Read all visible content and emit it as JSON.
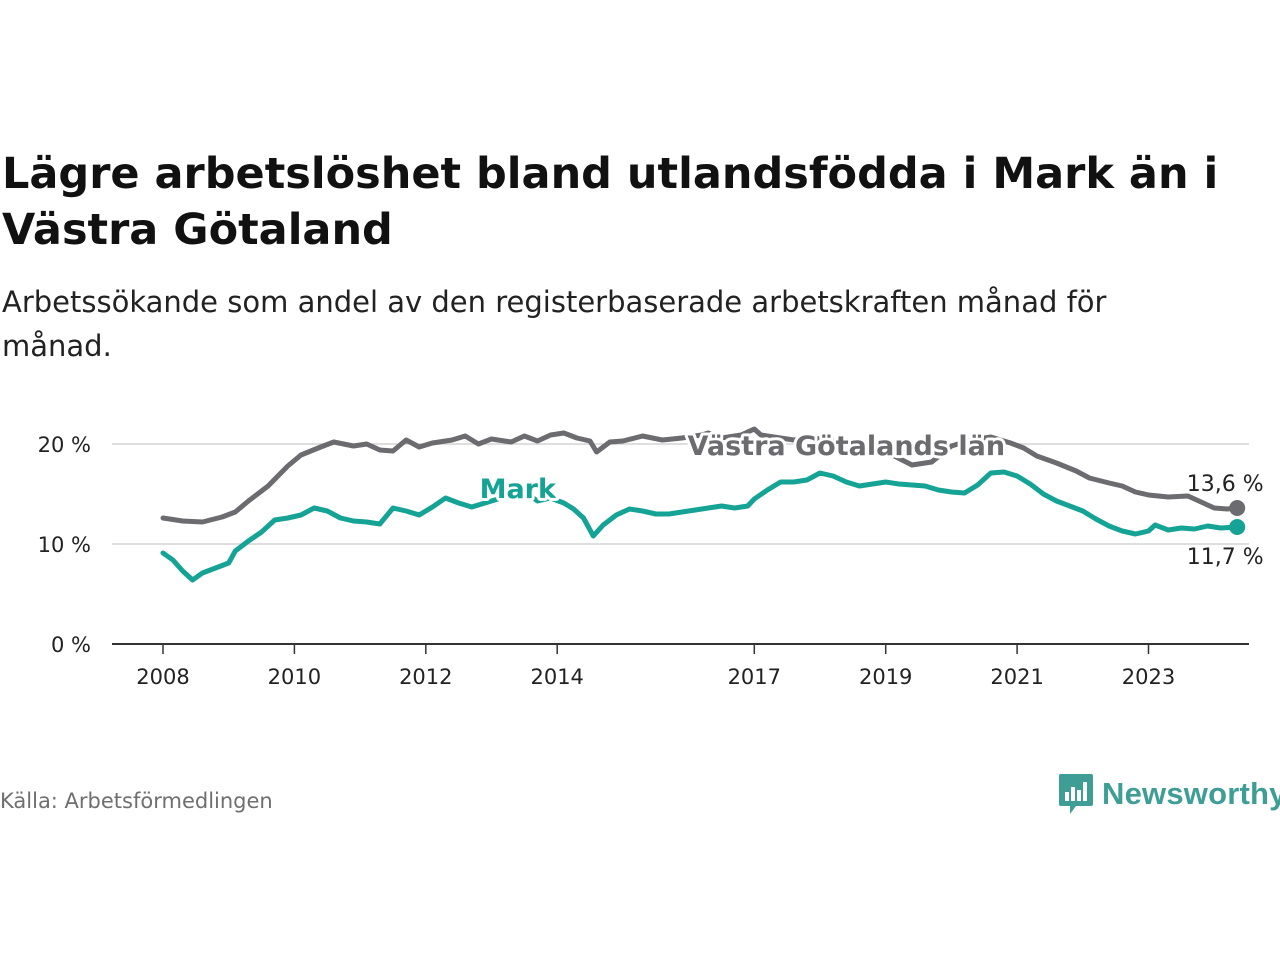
{
  "title": "Lägre arbetslöshet bland utlandsfödda i Mark än i Västra Götaland",
  "subtitle": "Arbetssökande som andel av den registerbaserade arbetskraften månad för månad.",
  "source": "Källa: Arbetsförmedlingen",
  "brand": {
    "name": "Newsworthy",
    "color": "#3e9e95"
  },
  "chart_data": {
    "type": "line",
    "title": "Lägre arbetslöshet bland utlandsfödda i Mark än i Västra Götaland",
    "xlabel": "",
    "ylabel": "",
    "ylim": [
      0,
      20
    ],
    "xlim": [
      2008,
      2024.85
    ],
    "grid": true,
    "y_ticks": [
      {
        "value": 0,
        "label": "0 %"
      },
      {
        "value": 10,
        "label": "10 %"
      },
      {
        "value": 20,
        "label": "20 %"
      }
    ],
    "x_ticks": [
      {
        "value": 2008,
        "label": "2008"
      },
      {
        "value": 2010,
        "label": "2010"
      },
      {
        "value": 2012,
        "label": "2012"
      },
      {
        "value": 2014,
        "label": "2014"
      },
      {
        "value": 2017,
        "label": "2017"
      },
      {
        "value": 2019,
        "label": "2019"
      },
      {
        "value": 2021,
        "label": "2021"
      },
      {
        "value": 2023,
        "label": "2023"
      }
    ],
    "series": [
      {
        "name": "Västra Götalands län",
        "color": "#6b6b70",
        "end_label": "13,6 %",
        "points": [
          [
            2008.0,
            12.6
          ],
          [
            2008.3,
            12.3
          ],
          [
            2008.6,
            12.2
          ],
          [
            2008.9,
            12.7
          ],
          [
            2009.1,
            13.2
          ],
          [
            2009.3,
            14.3
          ],
          [
            2009.6,
            15.8
          ],
          [
            2009.9,
            17.8
          ],
          [
            2010.1,
            18.9
          ],
          [
            2010.4,
            19.7
          ],
          [
            2010.6,
            20.2
          ],
          [
            2010.9,
            19.8
          ],
          [
            2011.1,
            20.0
          ],
          [
            2011.3,
            19.4
          ],
          [
            2011.5,
            19.3
          ],
          [
            2011.7,
            20.4
          ],
          [
            2011.9,
            19.7
          ],
          [
            2012.1,
            20.1
          ],
          [
            2012.4,
            20.4
          ],
          [
            2012.6,
            20.8
          ],
          [
            2012.8,
            20.0
          ],
          [
            2013.0,
            20.5
          ],
          [
            2013.3,
            20.2
          ],
          [
            2013.5,
            20.8
          ],
          [
            2013.7,
            20.3
          ],
          [
            2013.9,
            20.9
          ],
          [
            2014.1,
            21.1
          ],
          [
            2014.3,
            20.6
          ],
          [
            2014.5,
            20.3
          ],
          [
            2014.6,
            19.2
          ],
          [
            2014.8,
            20.2
          ],
          [
            2015.0,
            20.3
          ],
          [
            2015.3,
            20.8
          ],
          [
            2015.6,
            20.4
          ],
          [
            2015.9,
            20.6
          ],
          [
            2016.2,
            20.9
          ],
          [
            2016.3,
            21.1
          ],
          [
            2016.5,
            20.6
          ],
          [
            2016.8,
            20.9
          ],
          [
            2017.0,
            21.5
          ],
          [
            2017.1,
            20.9
          ],
          [
            2017.3,
            20.7
          ],
          [
            2017.6,
            20.4
          ],
          [
            2017.9,
            20.6
          ],
          [
            2018.2,
            20.3
          ],
          [
            2018.5,
            20.0
          ],
          [
            2018.8,
            19.6
          ],
          [
            2019.1,
            18.9
          ],
          [
            2019.4,
            17.9
          ],
          [
            2019.7,
            18.2
          ],
          [
            2020.0,
            19.8
          ],
          [
            2020.3,
            20.4
          ],
          [
            2020.6,
            20.7
          ],
          [
            2020.9,
            20.1
          ],
          [
            2021.1,
            19.6
          ],
          [
            2021.3,
            18.8
          ],
          [
            2021.6,
            18.1
          ],
          [
            2021.9,
            17.3
          ],
          [
            2022.1,
            16.6
          ],
          [
            2022.4,
            16.1
          ],
          [
            2022.6,
            15.8
          ],
          [
            2022.8,
            15.2
          ],
          [
            2023.0,
            14.9
          ],
          [
            2023.3,
            14.7
          ],
          [
            2023.6,
            14.8
          ],
          [
            2023.8,
            14.2
          ],
          [
            2024.0,
            13.6
          ],
          [
            2024.2,
            13.5
          ],
          [
            2024.35,
            13.6
          ]
        ]
      },
      {
        "name": "Mark",
        "color": "#14a394",
        "end_label": "11,7 %",
        "points": [
          [
            2008.0,
            9.1
          ],
          [
            2008.15,
            8.4
          ],
          [
            2008.3,
            7.3
          ],
          [
            2008.45,
            6.4
          ],
          [
            2008.6,
            7.1
          ],
          [
            2008.8,
            7.6
          ],
          [
            2009.0,
            8.1
          ],
          [
            2009.1,
            9.3
          ],
          [
            2009.3,
            10.3
          ],
          [
            2009.5,
            11.2
          ],
          [
            2009.7,
            12.4
          ],
          [
            2009.9,
            12.6
          ],
          [
            2010.1,
            12.9
          ],
          [
            2010.3,
            13.6
          ],
          [
            2010.5,
            13.3
          ],
          [
            2010.7,
            12.6
          ],
          [
            2010.9,
            12.3
          ],
          [
            2011.1,
            12.2
          ],
          [
            2011.3,
            12.0
          ],
          [
            2011.5,
            13.6
          ],
          [
            2011.7,
            13.3
          ],
          [
            2011.9,
            12.9
          ],
          [
            2012.1,
            13.7
          ],
          [
            2012.3,
            14.6
          ],
          [
            2012.5,
            14.1
          ],
          [
            2012.7,
            13.7
          ],
          [
            2012.9,
            14.1
          ],
          [
            2013.1,
            14.5
          ],
          [
            2013.3,
            15.6
          ],
          [
            2013.5,
            15.2
          ],
          [
            2013.7,
            14.3
          ],
          [
            2013.9,
            14.6
          ],
          [
            2014.1,
            14.1
          ],
          [
            2014.25,
            13.5
          ],
          [
            2014.4,
            12.6
          ],
          [
            2014.55,
            10.8
          ],
          [
            2014.7,
            11.9
          ],
          [
            2014.9,
            12.9
          ],
          [
            2015.1,
            13.5
          ],
          [
            2015.3,
            13.3
          ],
          [
            2015.5,
            13.0
          ],
          [
            2015.7,
            13.0
          ],
          [
            2015.9,
            13.2
          ],
          [
            2016.1,
            13.4
          ],
          [
            2016.3,
            13.6
          ],
          [
            2016.5,
            13.8
          ],
          [
            2016.7,
            13.6
          ],
          [
            2016.9,
            13.8
          ],
          [
            2017.0,
            14.5
          ],
          [
            2017.2,
            15.4
          ],
          [
            2017.4,
            16.2
          ],
          [
            2017.6,
            16.2
          ],
          [
            2017.8,
            16.4
          ],
          [
            2018.0,
            17.1
          ],
          [
            2018.2,
            16.8
          ],
          [
            2018.4,
            16.2
          ],
          [
            2018.6,
            15.8
          ],
          [
            2018.8,
            16.0
          ],
          [
            2019.0,
            16.2
          ],
          [
            2019.2,
            16.0
          ],
          [
            2019.4,
            15.9
          ],
          [
            2019.6,
            15.8
          ],
          [
            2019.8,
            15.4
          ],
          [
            2020.0,
            15.2
          ],
          [
            2020.2,
            15.1
          ],
          [
            2020.4,
            15.9
          ],
          [
            2020.6,
            17.1
          ],
          [
            2020.8,
            17.2
          ],
          [
            2021.0,
            16.8
          ],
          [
            2021.2,
            16.0
          ],
          [
            2021.4,
            15.0
          ],
          [
            2021.6,
            14.3
          ],
          [
            2021.8,
            13.8
          ],
          [
            2022.0,
            13.3
          ],
          [
            2022.2,
            12.5
          ],
          [
            2022.4,
            11.8
          ],
          [
            2022.6,
            11.3
          ],
          [
            2022.8,
            11.0
          ],
          [
            2023.0,
            11.3
          ],
          [
            2023.1,
            11.9
          ],
          [
            2023.3,
            11.4
          ],
          [
            2023.5,
            11.6
          ],
          [
            2023.7,
            11.5
          ],
          [
            2023.9,
            11.8
          ],
          [
            2024.1,
            11.6
          ],
          [
            2024.35,
            11.7
          ]
        ]
      }
    ],
    "annotations": [
      {
        "text": "Västra Götalands län",
        "series": 0,
        "x": 2018.4,
        "y": 18.9
      },
      {
        "text": "Mark",
        "series": 1,
        "x": 2013.4,
        "y": 14.6
      }
    ]
  }
}
